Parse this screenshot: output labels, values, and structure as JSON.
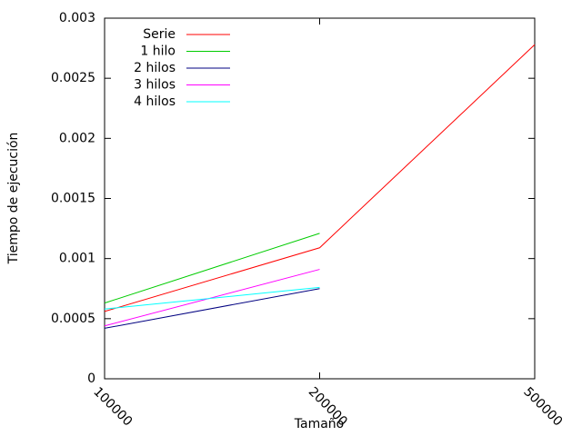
{
  "chart_data": {
    "type": "line",
    "x_label": "Tamaño",
    "y_label": "Tiempo de ejecución",
    "categories": [
      "100000",
      "200000",
      "500000"
    ],
    "series": [
      {
        "name": "Serie",
        "color": "#ff0000",
        "values": [
          0.00056,
          0.00109,
          0.00278
        ]
      },
      {
        "name": "1 hilo",
        "color": "#00cc00",
        "values": [
          0.00063,
          0.00121,
          null
        ]
      },
      {
        "name": "2 hilos",
        "color": "#000080",
        "values": [
          0.00042,
          0.00075,
          null
        ]
      },
      {
        "name": "3 hilos",
        "color": "#ff00ff",
        "values": [
          0.00044,
          0.00091,
          null
        ]
      },
      {
        "name": "4 hilos",
        "color": "#00ffff",
        "values": [
          0.00058,
          0.00076,
          null
        ]
      }
    ],
    "ylim": [
      0,
      0.003
    ],
    "yticks": [
      0,
      0.0005,
      0.001,
      0.0015,
      0.002,
      0.0025,
      0.003
    ],
    "legend": "top-left"
  }
}
